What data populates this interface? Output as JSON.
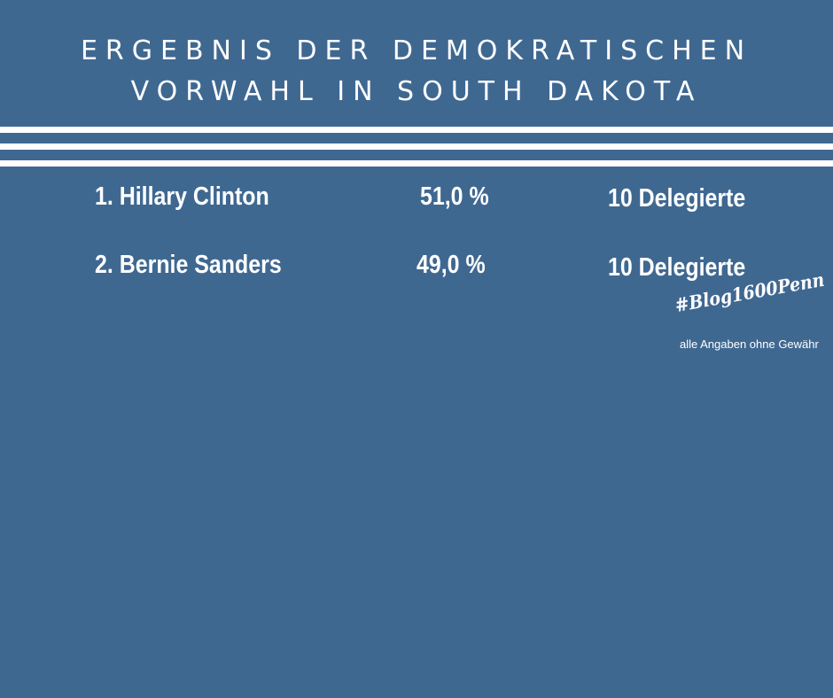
{
  "header": {
    "title_line1": "ERGEBNIS DER DEMOKRATISCHEN",
    "title_line2": "VORWAHL IN SOUTH DAKOTA"
  },
  "results": [
    {
      "rank_name": "1.  Hillary Clinton",
      "percent": "51,0 %",
      "delegates": "10 Delegierte"
    },
    {
      "rank_name": "2.  Bernie Sanders",
      "percent": "49,0 %",
      "delegates": "10 Delegierte"
    }
  ],
  "footer": {
    "hashtag": "#Blog1600Penn",
    "disclaimer": "alle Angaben ohne Gewähr"
  },
  "colors": {
    "background": "#3f6891",
    "text": "#ffffff"
  }
}
